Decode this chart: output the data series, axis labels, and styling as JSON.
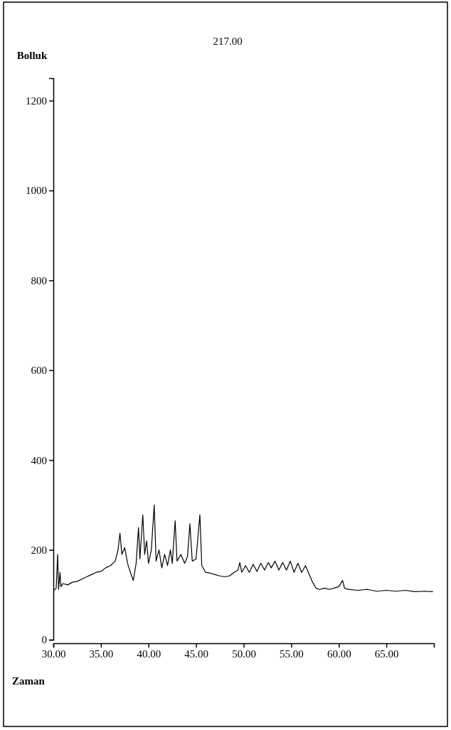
{
  "chart_data": {
    "type": "line",
    "title": "217.00",
    "xlabel": "Zaman",
    "ylabel": "Bolluk",
    "xlim": [
      30,
      70
    ],
    "ylim": [
      0,
      1250
    ],
    "xticks": [
      {
        "value": 30,
        "label": "30.00"
      },
      {
        "value": 35,
        "label": "35.00"
      },
      {
        "value": 40,
        "label": "40.00"
      },
      {
        "value": 45,
        "label": "45.00"
      },
      {
        "value": 50,
        "label": "50.00"
      },
      {
        "value": 55,
        "label": "55.00"
      },
      {
        "value": 60,
        "label": "60.00"
      },
      {
        "value": 65,
        "label": "65.00"
      }
    ],
    "yticks": [
      0,
      200,
      400,
      600,
      800,
      1000,
      1200
    ],
    "grid": false,
    "series": [
      {
        "color": "#000000",
        "x": [
          30.1,
          30.3,
          30.45,
          30.55,
          30.7,
          30.8,
          31.0,
          31.5,
          32.0,
          32.5,
          33.0,
          33.5,
          34.0,
          34.5,
          35.0,
          35.5,
          36.0,
          36.5,
          36.8,
          37.0,
          37.2,
          37.5,
          37.8,
          38.1,
          38.4,
          38.7,
          38.95,
          39.1,
          39.4,
          39.6,
          39.8,
          40.0,
          40.3,
          40.6,
          40.8,
          41.1,
          41.4,
          41.7,
          42.0,
          42.3,
          42.5,
          42.8,
          43.0,
          43.4,
          43.8,
          44.1,
          44.35,
          44.6,
          45.0,
          45.4,
          45.6,
          46.0,
          46.5,
          47.0,
          47.5,
          48.0,
          48.5,
          49.0,
          49.4,
          49.6,
          49.8,
          50.2,
          50.6,
          51.0,
          51.4,
          51.8,
          52.2,
          52.6,
          52.9,
          53.3,
          53.7,
          54.1,
          54.5,
          54.9,
          55.3,
          55.7,
          56.1,
          56.5,
          56.8,
          57.2,
          57.6,
          58.0,
          58.5,
          59.0,
          59.5,
          60.0,
          60.4,
          60.6,
          61.0,
          62.0,
          63.0,
          64.0,
          65.0,
          66.0,
          67.0,
          68.0,
          69.0,
          69.9
        ],
        "values": [
          110,
          115,
          190,
          112,
          150,
          118,
          125,
          122,
          128,
          130,
          135,
          140,
          145,
          150,
          152,
          160,
          165,
          175,
          200,
          237,
          190,
          205,
          170,
          150,
          132,
          170,
          250,
          180,
          278,
          190,
          220,
          170,
          200,
          300,
          175,
          200,
          160,
          190,
          165,
          200,
          170,
          265,
          175,
          190,
          170,
          185,
          258,
          175,
          180,
          278,
          165,
          150,
          148,
          145,
          142,
          140,
          142,
          150,
          155,
          172,
          150,
          165,
          150,
          168,
          152,
          170,
          155,
          172,
          160,
          175,
          155,
          172,
          155,
          175,
          150,
          170,
          150,
          165,
          150,
          130,
          115,
          112,
          115,
          112,
          115,
          118,
          132,
          115,
          112,
          110,
          112,
          108,
          110,
          108,
          110,
          107,
          108,
          107
        ]
      }
    ]
  }
}
